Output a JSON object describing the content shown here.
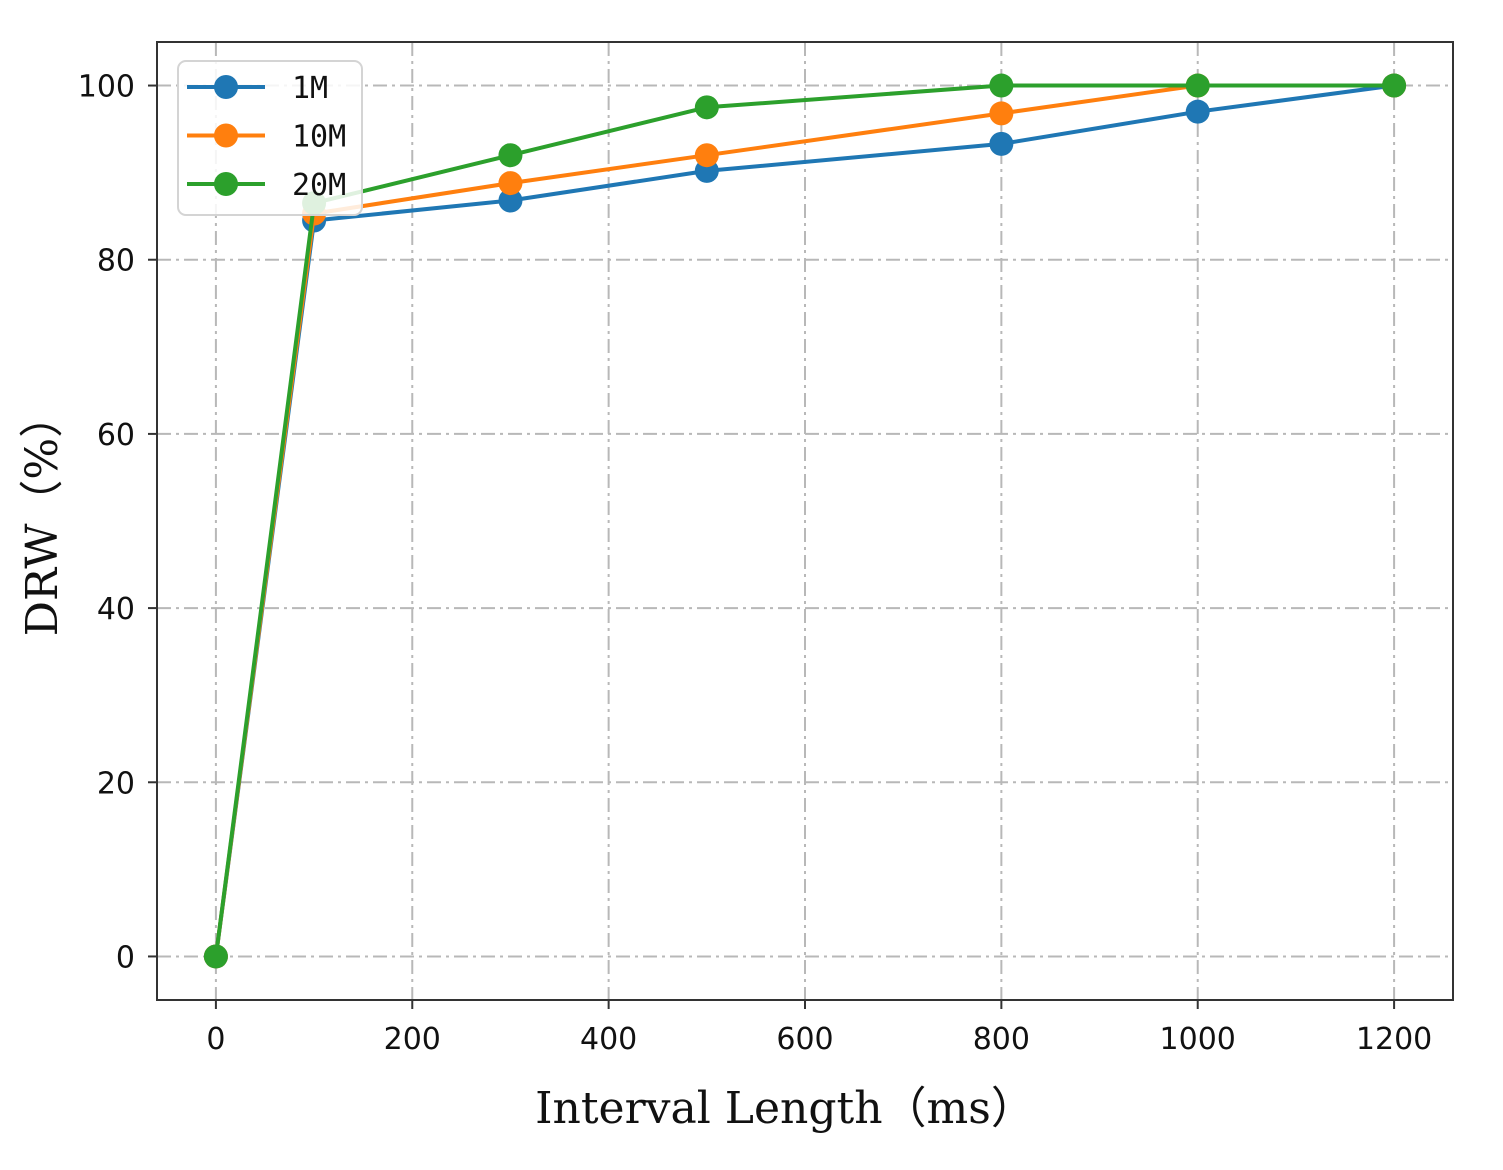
{
  "chart_data": {
    "type": "line",
    "xlabel": "Interval Length（ms）",
    "ylabel": "DRW（%）",
    "xlim": [
      -60,
      1260
    ],
    "ylim": [
      -5,
      105
    ],
    "xticks": [
      0,
      200,
      400,
      600,
      800,
      1000,
      1200
    ],
    "yticks": [
      0,
      20,
      40,
      60,
      80,
      100
    ],
    "grid": true,
    "legend_position": "upper-left",
    "series": [
      {
        "name": "1M",
        "color": "#1f77b4",
        "x": [
          0,
          100,
          300,
          500,
          800,
          1000,
          1200
        ],
        "y": [
          0,
          84.5,
          86.8,
          90.2,
          93.3,
          97.0,
          100
        ]
      },
      {
        "name": "10M",
        "color": "#ff7f0e",
        "x": [
          0,
          100,
          300,
          500,
          800,
          1000,
          1200
        ],
        "y": [
          0,
          85.3,
          88.8,
          92.0,
          96.8,
          100,
          100
        ]
      },
      {
        "name": "20M",
        "color": "#2ca02c",
        "x": [
          0,
          100,
          300,
          500,
          800,
          1000,
          1200
        ],
        "y": [
          0,
          86.5,
          92.0,
          97.5,
          100,
          100,
          100
        ]
      }
    ]
  }
}
